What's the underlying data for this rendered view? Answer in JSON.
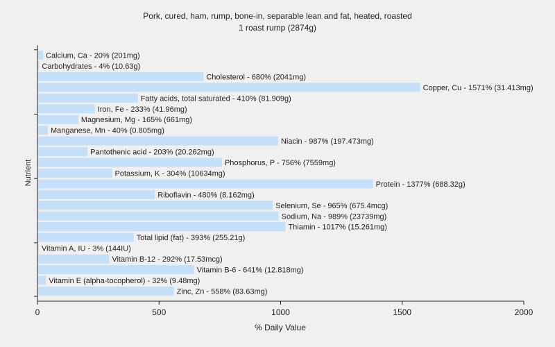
{
  "chart_data": {
    "type": "bar",
    "orientation": "horizontal",
    "title": "Pork, cured, ham, rump, bone-in, separable lean and fat, heated, roasted",
    "subtitle": "1 roast rump (2874g)",
    "xlabel": "% Daily Value",
    "ylabel": "Nutrient",
    "xlim": [
      0,
      2000
    ],
    "xticks": [
      "0",
      "500",
      "1000",
      "1500",
      "2000"
    ],
    "grid": false,
    "bar_color": "#c6dff8",
    "categories": [
      "Calcium, Ca",
      "Carbohydrates",
      "Cholesterol",
      "Copper, Cu",
      "Fatty acids, total saturated",
      "Iron, Fe",
      "Magnesium, Mg",
      "Manganese, Mn",
      "Niacin",
      "Pantothenic acid",
      "Phosphorus, P",
      "Potassium, K",
      "Protein",
      "Riboflavin",
      "Selenium, Se",
      "Sodium, Na",
      "Thiamin",
      "Total lipid (fat)",
      "Vitamin A, IU",
      "Vitamin B-12",
      "Vitamin B-6",
      "Vitamin E (alpha-tocopherol)",
      "Zinc, Zn"
    ],
    "values": [
      20,
      4,
      680,
      1571,
      410,
      233,
      165,
      40,
      987,
      203,
      756,
      304,
      1377,
      480,
      965,
      989,
      1017,
      393,
      3,
      292,
      641,
      32,
      558
    ],
    "labels": [
      "Calcium, Ca - 20% (201mg)",
      "Carbohydrates - 4% (10.63g)",
      "Cholesterol - 680% (2041mg)",
      "Copper, Cu - 1571% (31.413mg)",
      "Fatty acids, total saturated - 410% (81.909g)",
      "Iron, Fe - 233% (41.96mg)",
      "Magnesium, Mg - 165% (661mg)",
      "Manganese, Mn - 40% (0.805mg)",
      "Niacin - 987% (197.473mg)",
      "Pantothenic acid - 203% (20.262mg)",
      "Phosphorus, P - 756% (7559mg)",
      "Potassium, K - 304% (10634mg)",
      "Protein - 1377% (688.32g)",
      "Riboflavin - 480% (8.162mg)",
      "Selenium, Se - 965% (675.4mcg)",
      "Sodium, Na - 989% (23739mg)",
      "Thiamin - 1017% (15.261mg)",
      "Total lipid (fat) - 393% (255.21g)",
      "Vitamin A, IU - 3% (144IU)",
      "Vitamin B-12 - 292% (17.53mcg)",
      "Vitamin B-6 - 641% (12.818mg)",
      "Vitamin E (alpha-tocopherol) - 32% (9.48mg)",
      "Zinc, Zn - 558% (83.63mg)"
    ]
  }
}
